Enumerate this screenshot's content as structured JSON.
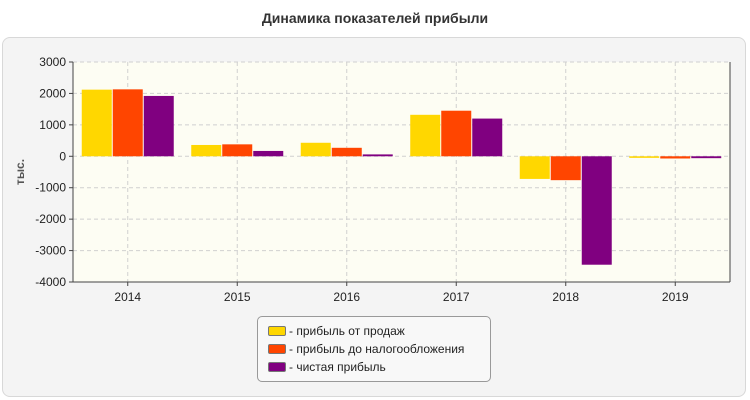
{
  "chart_data": {
    "type": "bar",
    "title": "Динамика показателей прибыли",
    "xlabel": "",
    "ylabel": "тыс.",
    "categories": [
      "2014",
      "2015",
      "2016",
      "2017",
      "2018",
      "2019"
    ],
    "ylim": [
      -4000,
      3000
    ],
    "yticks": [
      3000,
      2000,
      1000,
      0,
      -1000,
      -2000,
      -3000,
      -4000
    ],
    "grid": true,
    "legend_position": "bottom",
    "series": [
      {
        "name": "- прибыль от продаж",
        "color": "#FFD700",
        "values": [
          2120,
          360,
          430,
          1320,
          -720,
          -50
        ]
      },
      {
        "name": "- прибыль до налогообложения",
        "color": "#FF4500",
        "values": [
          2130,
          380,
          270,
          1450,
          -760,
          -70
        ]
      },
      {
        "name": "- чистая прибыль",
        "color": "#800080",
        "values": [
          1920,
          170,
          60,
          1200,
          -3450,
          -60
        ]
      }
    ]
  }
}
